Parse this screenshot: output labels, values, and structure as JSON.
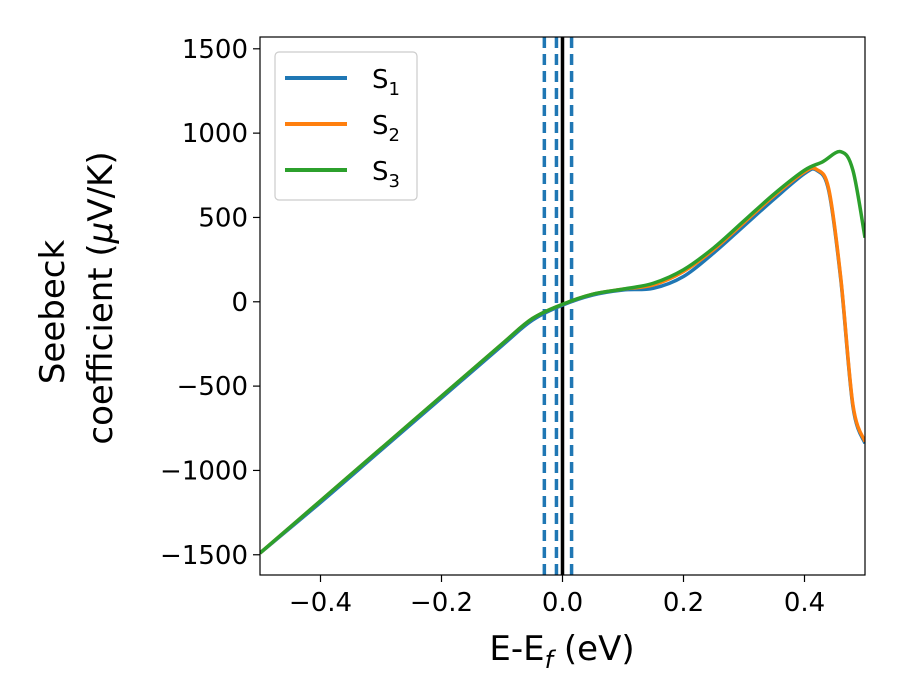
{
  "chart_data": {
    "type": "line",
    "title": "",
    "xlabel": {
      "main": "E-E",
      "sub": "f",
      "unit": " (eV)"
    },
    "ylabel": {
      "line1": "Seebeck",
      "line2": "coefficient  (",
      "mu": "μ",
      "unit": "V/K)"
    },
    "xlim": [
      -0.5,
      0.5
    ],
    "ylim": [
      -1620,
      1570
    ],
    "xticks": [
      -0.4,
      -0.2,
      0.0,
      0.2,
      0.4
    ],
    "xtick_labels": [
      "−0.4",
      "−0.2",
      "0.0",
      "0.2",
      "0.4"
    ],
    "yticks": [
      -1500,
      -1000,
      -500,
      0,
      500,
      1000,
      1500
    ],
    "ytick_labels": [
      "−1500",
      "−1000",
      "−500",
      "0",
      "500",
      "1000",
      "1500"
    ],
    "grid": false,
    "legend_position": "top-left",
    "series": [
      {
        "name": "S",
        "sub": "1",
        "color": "#1f77b4",
        "x": [
          -0.5,
          -0.4,
          -0.3,
          -0.2,
          -0.1,
          -0.05,
          0.0,
          0.05,
          0.1,
          0.15,
          0.2,
          0.25,
          0.3,
          0.35,
          0.4,
          0.42,
          0.44,
          0.46,
          0.48,
          0.5
        ],
        "y": [
          -1490,
          -1190,
          -880,
          -570,
          -260,
          -110,
          -20,
          40,
          70,
          80,
          150,
          290,
          450,
          610,
          760,
          780,
          660,
          130,
          -620,
          -840
        ]
      },
      {
        "name": "S",
        "sub": "2",
        "color": "#ff7f0e",
        "x": [
          -0.5,
          -0.4,
          -0.3,
          -0.2,
          -0.1,
          -0.05,
          0.0,
          0.05,
          0.1,
          0.15,
          0.2,
          0.25,
          0.3,
          0.35,
          0.4,
          0.42,
          0.44,
          0.46,
          0.48,
          0.5
        ],
        "y": [
          -1490,
          -1180,
          -870,
          -560,
          -250,
          -100,
          -15,
          45,
          75,
          100,
          180,
          310,
          470,
          630,
          770,
          785,
          670,
          140,
          -610,
          -830
        ]
      },
      {
        "name": "S",
        "sub": "3",
        "color": "#2ca02c",
        "x": [
          -0.5,
          -0.4,
          -0.3,
          -0.2,
          -0.1,
          -0.05,
          0.0,
          0.05,
          0.1,
          0.15,
          0.2,
          0.25,
          0.3,
          0.35,
          0.4,
          0.43,
          0.46,
          0.48,
          0.5
        ],
        "y": [
          -1490,
          -1180,
          -870,
          -560,
          -250,
          -100,
          -15,
          45,
          75,
          110,
          190,
          320,
          480,
          640,
          780,
          830,
          890,
          780,
          380
        ]
      }
    ],
    "vlines": [
      {
        "x": -0.03,
        "style": "dashed",
        "color": "#1f77b4"
      },
      {
        "x": -0.01,
        "style": "dashed",
        "color": "#1f77b4"
      },
      {
        "x": 0.015,
        "style": "dashed",
        "color": "#1f77b4"
      },
      {
        "x": 0.0,
        "style": "solid",
        "color": "#000000"
      }
    ]
  }
}
